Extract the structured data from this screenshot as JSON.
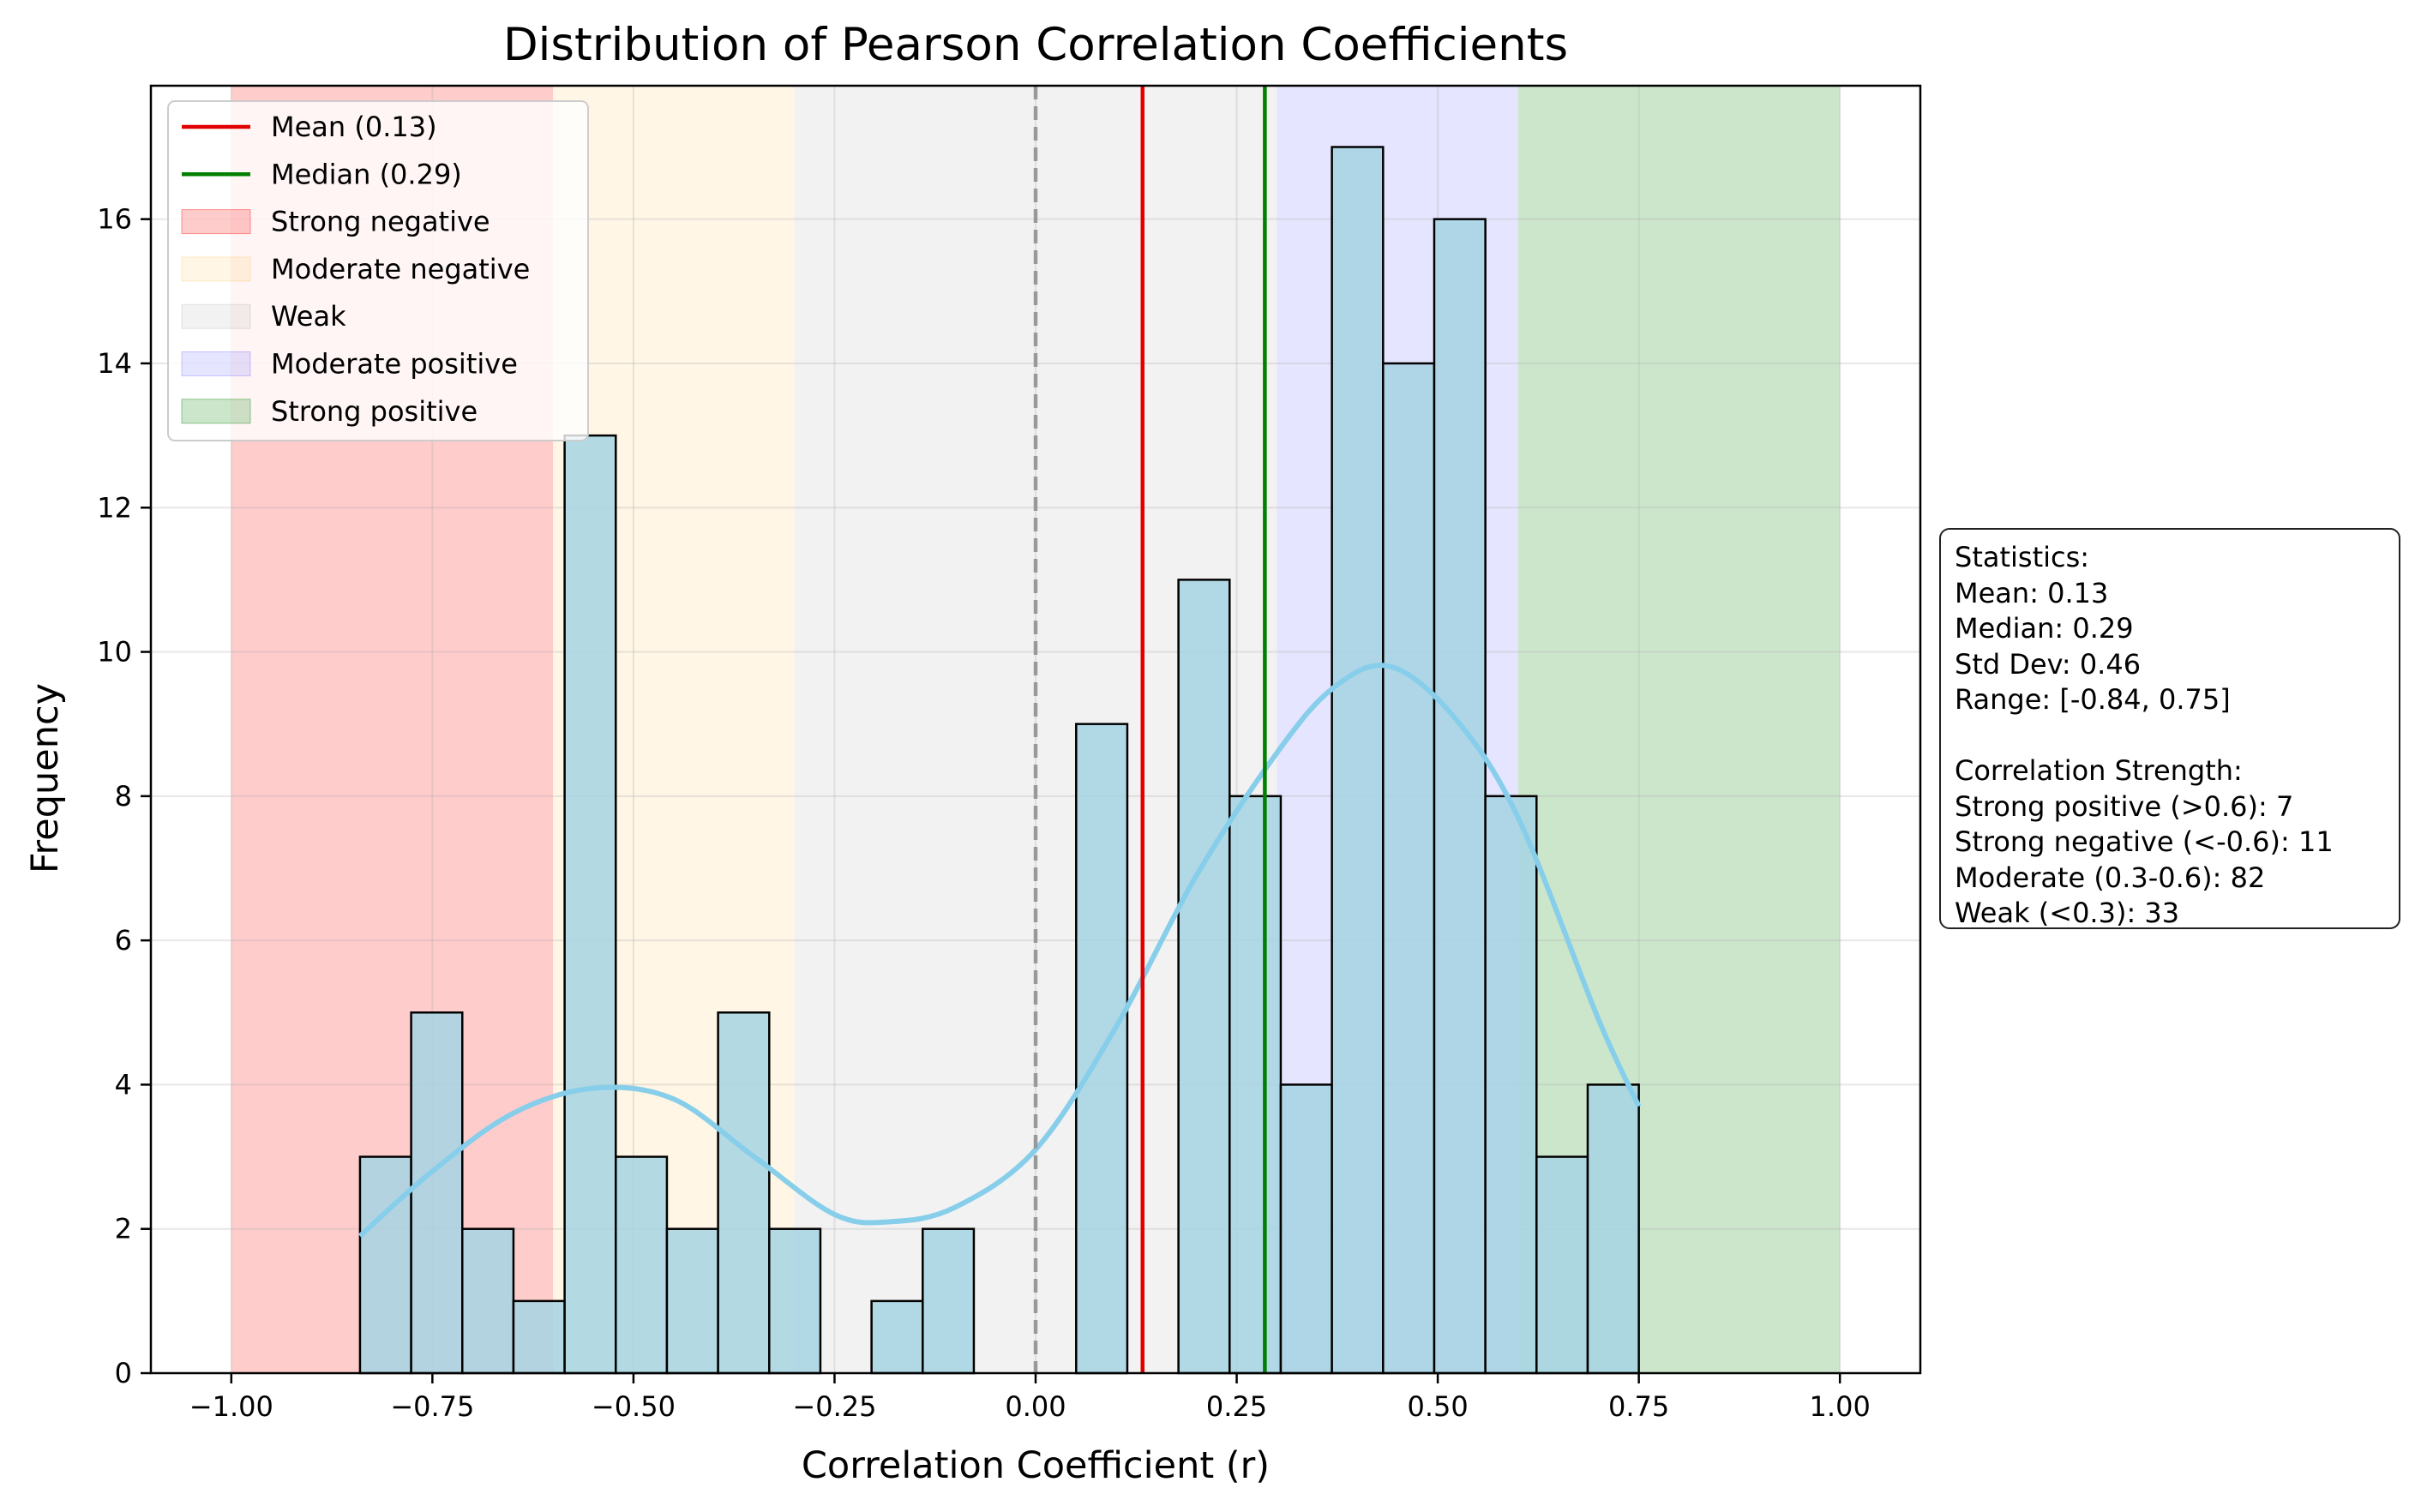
{
  "chart_data": {
    "type": "bar",
    "title": "Distribution of Pearson Correlation Coefficients",
    "xlabel": "Correlation Coefficient (r)",
    "ylabel": "Frequency",
    "xlim": [
      -1.1,
      1.1
    ],
    "ylim": [
      0,
      17.85
    ],
    "xticks": [
      -1.0,
      -0.75,
      -0.5,
      -0.25,
      0.0,
      0.25,
      0.5,
      0.75,
      1.0
    ],
    "xtick_labels": [
      "−1.00",
      "−0.75",
      "−0.50",
      "−0.25",
      "0.00",
      "0.25",
      "0.50",
      "0.75",
      "1.00"
    ],
    "yticks": [
      0,
      2,
      4,
      6,
      8,
      10,
      12,
      14,
      16
    ],
    "grid": true,
    "legend_position": "top-left",
    "bins": {
      "start": -0.84,
      "width": 0.0636,
      "counts": [
        3,
        5,
        2,
        1,
        13,
        3,
        2,
        5,
        2,
        0,
        1,
        2,
        0,
        0,
        9,
        0,
        11,
        8,
        4,
        17,
        14,
        16,
        8,
        3,
        4
      ]
    },
    "bar_color": "#a6d3e3",
    "kde": {
      "color": "#87ceeb",
      "x": [
        -0.84,
        -0.75,
        -0.65,
        -0.55,
        -0.45,
        -0.35,
        -0.25,
        -0.18,
        -0.1,
        0.0,
        0.1,
        0.2,
        0.3,
        0.37,
        0.44,
        0.52,
        0.6,
        0.7,
        0.75
      ],
      "y": [
        1.9,
        2.8,
        3.6,
        3.95,
        3.8,
        3.0,
        2.2,
        2.1,
        2.3,
        3.1,
        4.8,
        6.9,
        8.6,
        9.5,
        9.8,
        9.1,
        7.7,
        4.9,
        3.7
      ]
    },
    "regions": [
      {
        "label": "Strong negative",
        "from": -1.0,
        "to": -0.6,
        "color": "#ff0000",
        "alpha": 0.2
      },
      {
        "label": "Moderate negative",
        "from": -0.6,
        "to": -0.3,
        "color": "#ffa500",
        "alpha": 0.1
      },
      {
        "label": "Weak",
        "from": -0.3,
        "to": 0.3,
        "color": "#808080",
        "alpha": 0.1
      },
      {
        "label": "Moderate positive",
        "from": 0.3,
        "to": 0.6,
        "color": "#0000ff",
        "alpha": 0.1
      },
      {
        "label": "Strong positive",
        "from": 0.6,
        "to": 1.0,
        "color": "#008000",
        "alpha": 0.2
      }
    ],
    "zero_line": {
      "x": 0.0,
      "color": "#999999",
      "style": "dashed"
    },
    "vlines": [
      {
        "label": "Mean (0.13)",
        "x": 0.133,
        "color": "#e00000"
      },
      {
        "label": "Median (0.29)",
        "x": 0.285,
        "color": "#007f00"
      }
    ],
    "stats_box": [
      "Statistics:",
      "Mean: 0.13",
      "Median: 0.29",
      "Std Dev: 0.46",
      "Range: [-0.84, 0.75]",
      "",
      "Correlation Strength:",
      "Strong positive (>0.6): 7",
      "Strong negative (<-0.6): 11",
      "Moderate (0.3-0.6): 82",
      "Weak (<0.3): 33"
    ]
  }
}
